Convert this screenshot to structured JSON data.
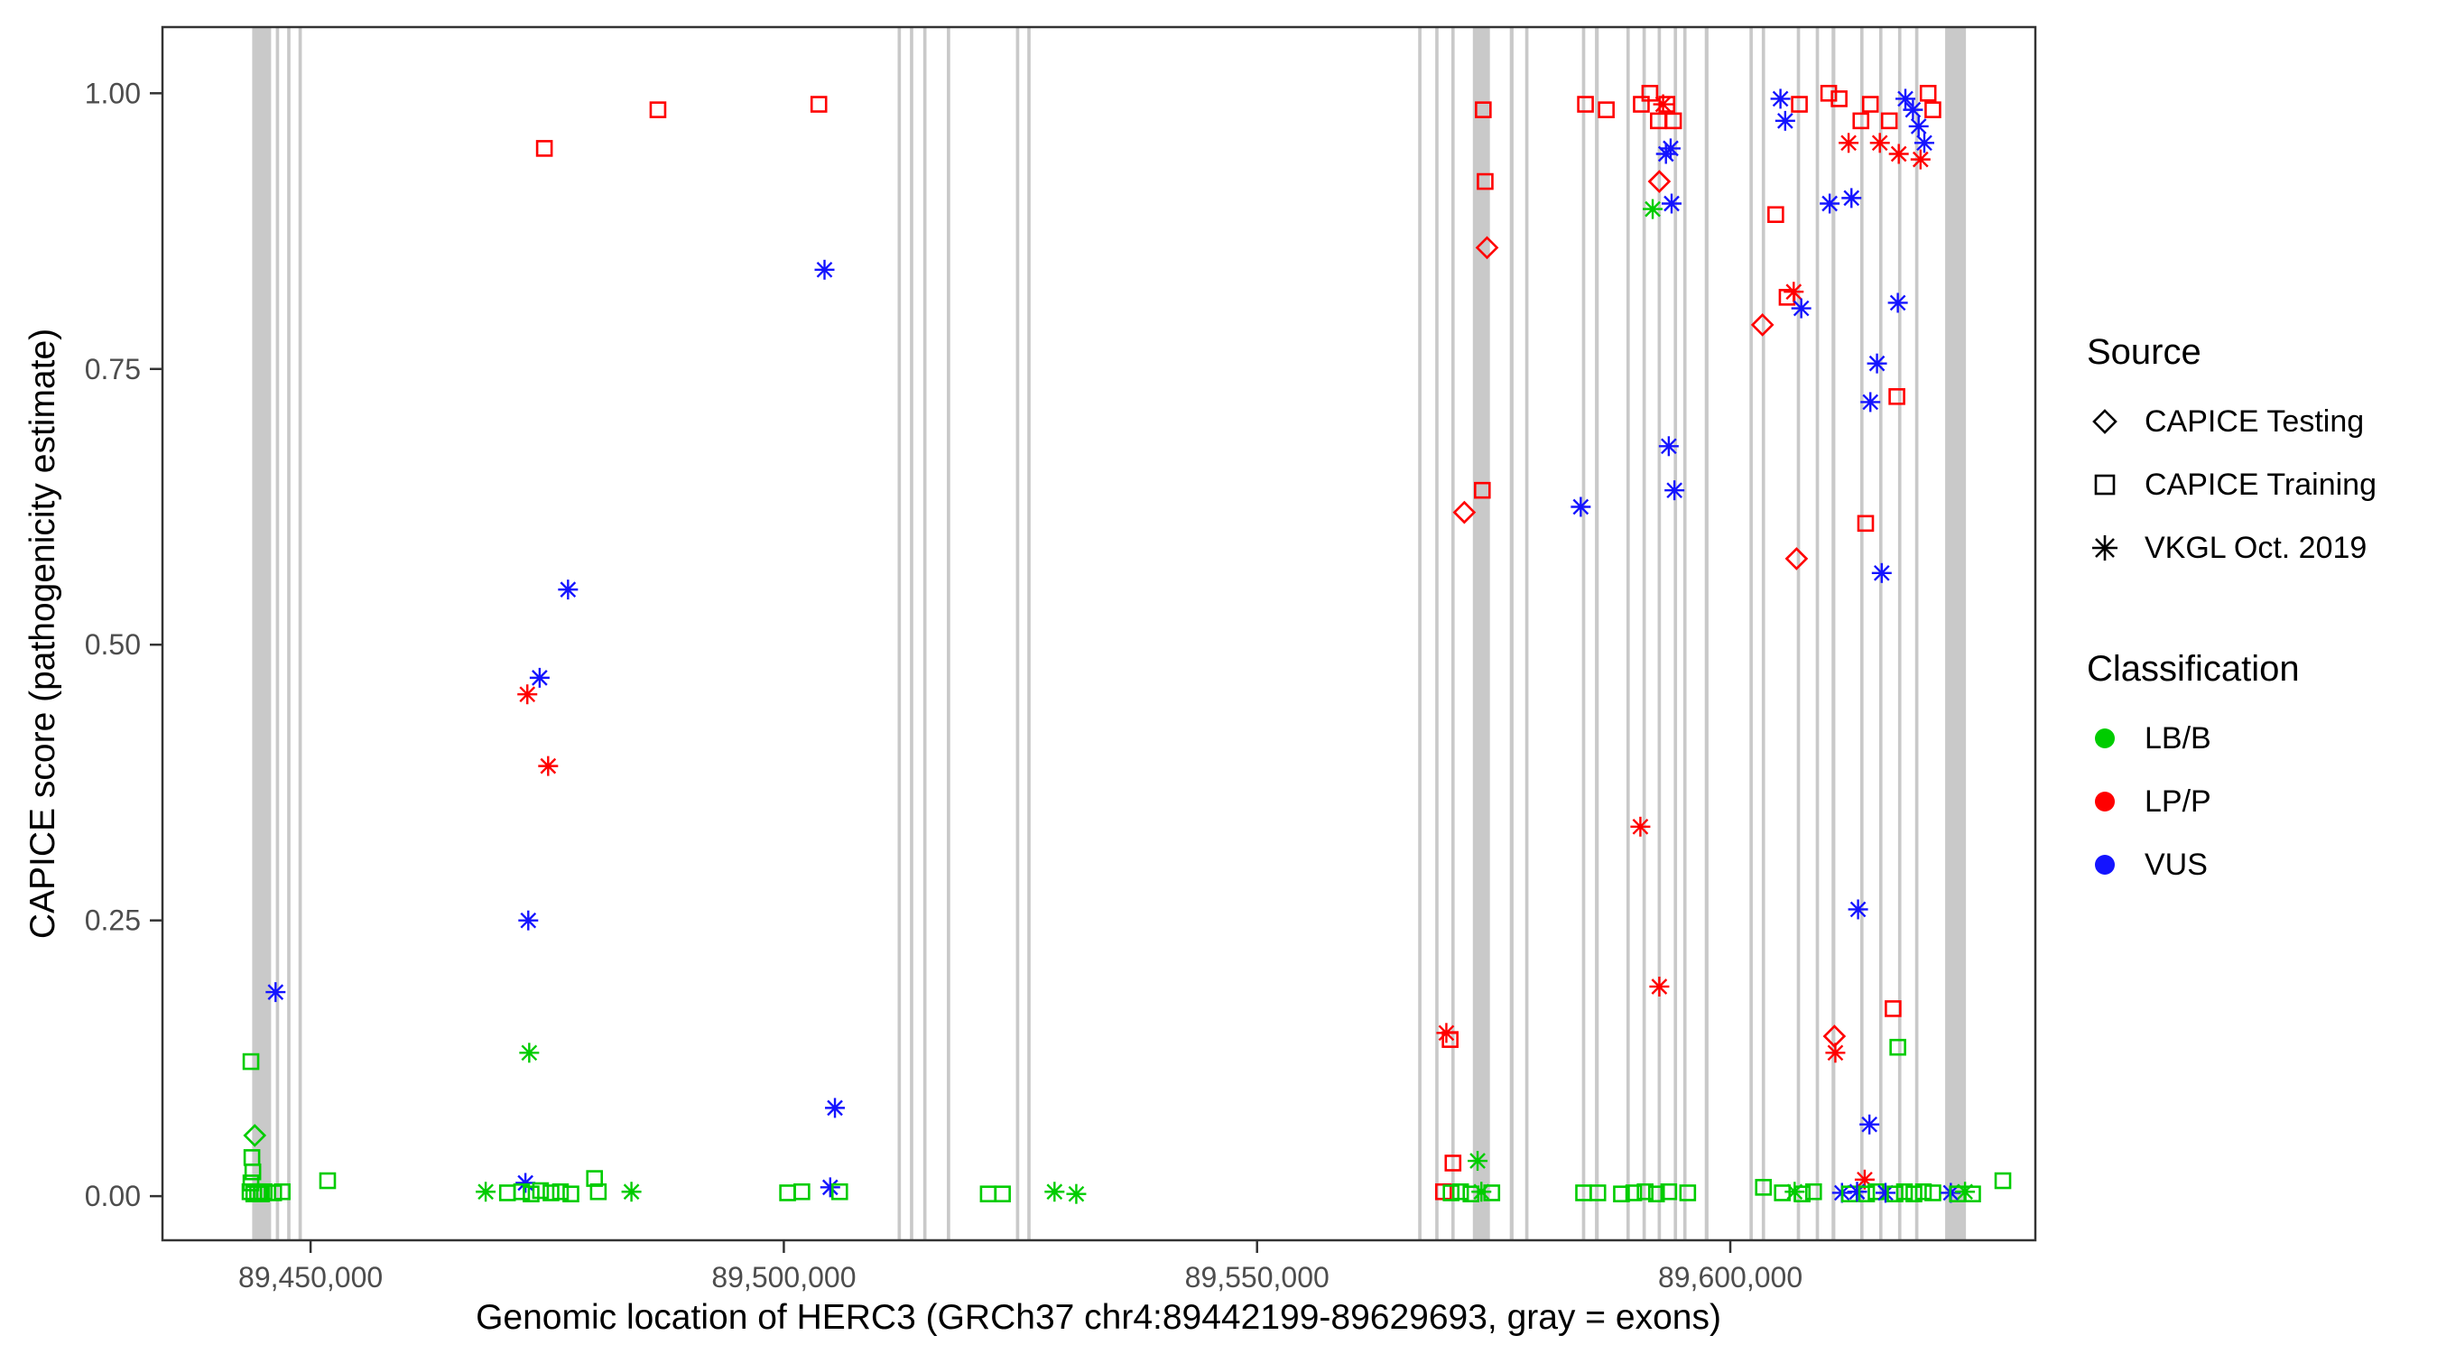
{
  "chart_data": {
    "type": "scatter",
    "title": "",
    "xlabel": "Genomic location of HERC3 (GRCh37 chr4:89442199-89629693, gray = exons)",
    "ylabel": "CAPICE score (pathogenicity estimate)",
    "xlim": [
      89434350,
      89632230
    ],
    "ylim": [
      -0.04,
      1.06
    ],
    "grid": "off",
    "legend_position": "right",
    "x_ticks": [
      {
        "value": 89450000,
        "label": "89,450,000"
      },
      {
        "value": 89500000,
        "label": "89,500,000"
      },
      {
        "value": 89550000,
        "label": "89,550,000"
      },
      {
        "value": 89600000,
        "label": "89,600,000"
      }
    ],
    "y_ticks": [
      {
        "value": 0.0,
        "label": "0.00"
      },
      {
        "value": 0.25,
        "label": "0.25"
      },
      {
        "value": 0.5,
        "label": "0.50"
      },
      {
        "value": 0.75,
        "label": "0.75"
      },
      {
        "value": 1.0,
        "label": "1.00"
      }
    ],
    "sources": [
      "CAPICE Testing",
      "CAPICE Training",
      "VKGL Oct. 2019"
    ],
    "source_shapes": [
      "diamond",
      "square",
      "asterisk"
    ],
    "classes": [
      "LB/B",
      "LP/P",
      "VUS"
    ],
    "class_colors": [
      "#00CC00",
      "#FF0000",
      "#1414FF"
    ],
    "exon_color": "#C9C9C9",
    "axis_color": "#333333",
    "tick_label_color": "#4D4D4D",
    "exons": [
      [
        89444830,
        2000
      ],
      [
        89446500,
        350
      ],
      [
        89447700,
        350
      ],
      [
        89448900,
        350
      ],
      [
        89512200,
        350
      ],
      [
        89513500,
        350
      ],
      [
        89514900,
        350
      ],
      [
        89517400,
        350
      ],
      [
        89524700,
        350
      ],
      [
        89525900,
        350
      ],
      [
        89567200,
        350
      ],
      [
        89569000,
        350
      ],
      [
        89570700,
        350
      ],
      [
        89573700,
        1800
      ],
      [
        89576900,
        400
      ],
      [
        89578500,
        350
      ],
      [
        89584500,
        350
      ],
      [
        89585900,
        400
      ],
      [
        89589200,
        350
      ],
      [
        89590900,
        350
      ],
      [
        89592500,
        350
      ],
      [
        89594200,
        350
      ],
      [
        89595200,
        350
      ],
      [
        89597500,
        400
      ],
      [
        89602200,
        350
      ],
      [
        89603500,
        350
      ],
      [
        89607200,
        350
      ],
      [
        89609200,
        350
      ],
      [
        89610900,
        400
      ],
      [
        89613900,
        350
      ],
      [
        89615900,
        350
      ],
      [
        89617900,
        350
      ],
      [
        89619700,
        350
      ],
      [
        89623800,
        2200
      ]
    ],
    "points": [
      [
        89443700,
        0.122,
        1,
        0
      ],
      [
        89444100,
        0.055,
        0,
        0
      ],
      [
        89443800,
        0.035,
        1,
        0
      ],
      [
        89443900,
        0.022,
        1,
        0
      ],
      [
        89443700,
        0.012,
        1,
        0
      ],
      [
        89443600,
        0.004,
        1,
        0
      ],
      [
        89444000,
        0.002,
        1,
        0
      ],
      [
        89444400,
        0.004,
        1,
        0
      ],
      [
        89444800,
        0.002,
        1,
        0
      ],
      [
        89445100,
        0.004,
        1,
        0
      ],
      [
        89446300,
        0.185,
        2,
        2
      ],
      [
        89446100,
        0.003,
        1,
        0
      ],
      [
        89447000,
        0.004,
        1,
        0
      ],
      [
        89451800,
        0.014,
        1,
        0
      ],
      [
        89474700,
        0.95,
        1,
        1
      ],
      [
        89477200,
        0.55,
        2,
        2
      ],
      [
        89474200,
        0.47,
        2,
        2
      ],
      [
        89472900,
        0.455,
        2,
        1
      ],
      [
        89475100,
        0.39,
        2,
        1
      ],
      [
        89473000,
        0.25,
        2,
        2
      ],
      [
        89473100,
        0.13,
        2,
        0
      ],
      [
        89468500,
        0.004,
        2,
        0
      ],
      [
        89472700,
        0.012,
        2,
        2
      ],
      [
        89470800,
        0.003,
        1,
        0
      ],
      [
        89472300,
        0.004,
        1,
        0
      ],
      [
        89473300,
        0.002,
        1,
        0
      ],
      [
        89474300,
        0.005,
        1,
        0
      ],
      [
        89475400,
        0.003,
        1,
        0
      ],
      [
        89476400,
        0.004,
        1,
        0
      ],
      [
        89477500,
        0.002,
        1,
        0
      ],
      [
        89480000,
        0.016,
        1,
        0
      ],
      [
        89480400,
        0.004,
        1,
        0
      ],
      [
        89483900,
        0.004,
        2,
        0
      ],
      [
        89486700,
        0.985,
        1,
        1
      ],
      [
        89503700,
        0.99,
        1,
        1
      ],
      [
        89504300,
        0.84,
        2,
        2
      ],
      [
        89505400,
        0.08,
        2,
        2
      ],
      [
        89500400,
        0.003,
        1,
        0
      ],
      [
        89501900,
        0.004,
        1,
        0
      ],
      [
        89504900,
        0.008,
        2,
        2
      ],
      [
        89505900,
        0.004,
        1,
        0
      ],
      [
        89521600,
        0.002,
        1,
        0
      ],
      [
        89523100,
        0.002,
        1,
        0
      ],
      [
        89528600,
        0.004,
        2,
        0
      ],
      [
        89530900,
        0.002,
        2,
        0
      ],
      [
        89573900,
        0.985,
        1,
        1
      ],
      [
        89574100,
        0.92,
        1,
        1
      ],
      [
        89574300,
        0.86,
        0,
        1
      ],
      [
        89573800,
        0.64,
        1,
        1
      ],
      [
        89571900,
        0.62,
        0,
        1
      ],
      [
        89570000,
        0.148,
        2,
        1
      ],
      [
        89570400,
        0.142,
        1,
        1
      ],
      [
        89570700,
        0.03,
        1,
        1
      ],
      [
        89573300,
        0.032,
        2,
        0
      ],
      [
        89569700,
        0.004,
        1,
        1
      ],
      [
        89570500,
        0.003,
        1,
        0
      ],
      [
        89571500,
        0.004,
        1,
        0
      ],
      [
        89572600,
        0.002,
        1,
        0
      ],
      [
        89573700,
        0.004,
        2,
        0
      ],
      [
        89574800,
        0.003,
        1,
        0
      ],
      [
        89584200,
        0.625,
        2,
        2
      ],
      [
        89584700,
        0.99,
        1,
        1
      ],
      [
        89586900,
        0.985,
        1,
        1
      ],
      [
        89584500,
        0.003,
        1,
        0
      ],
      [
        89586000,
        0.003,
        1,
        0
      ],
      [
        89588500,
        0.002,
        1,
        0
      ],
      [
        89590600,
        0.99,
        1,
        1
      ],
      [
        89591500,
        1.0,
        1,
        1
      ],
      [
        89592400,
        0.975,
        1,
        1
      ],
      [
        89593300,
        0.99,
        1,
        1
      ],
      [
        89594000,
        0.975,
        1,
        1
      ],
      [
        89592900,
        0.99,
        2,
        1
      ],
      [
        89592500,
        0.92,
        0,
        1
      ],
      [
        89591800,
        0.895,
        2,
        0
      ],
      [
        89593800,
        0.9,
        2,
        2
      ],
      [
        89593200,
        0.945,
        2,
        2
      ],
      [
        89593700,
        0.95,
        2,
        2
      ],
      [
        89593500,
        0.68,
        2,
        2
      ],
      [
        89594100,
        0.64,
        2,
        2
      ],
      [
        89590500,
        0.335,
        2,
        1
      ],
      [
        89592500,
        0.19,
        2,
        1
      ],
      [
        89589800,
        0.003,
        1,
        0
      ],
      [
        89591000,
        0.004,
        1,
        0
      ],
      [
        89592200,
        0.002,
        1,
        0
      ],
      [
        89593500,
        0.004,
        1,
        0
      ],
      [
        89595500,
        0.003,
        1,
        0
      ],
      [
        89605300,
        0.995,
        2,
        2
      ],
      [
        89605800,
        0.975,
        2,
        2
      ],
      [
        89607300,
        0.99,
        1,
        1
      ],
      [
        89610400,
        1.0,
        1,
        1
      ],
      [
        89611500,
        0.995,
        1,
        1
      ],
      [
        89612500,
        0.955,
        2,
        1
      ],
      [
        89613800,
        0.975,
        1,
        1
      ],
      [
        89614800,
        0.99,
        1,
        1
      ],
      [
        89615800,
        0.955,
        2,
        1
      ],
      [
        89616800,
        0.975,
        1,
        1
      ],
      [
        89617800,
        0.945,
        2,
        1
      ],
      [
        89618500,
        0.995,
        2,
        2
      ],
      [
        89619300,
        0.985,
        2,
        2
      ],
      [
        89619900,
        0.97,
        2,
        2
      ],
      [
        89620500,
        0.955,
        2,
        2
      ],
      [
        89620900,
        1.0,
        1,
        1
      ],
      [
        89621400,
        0.985,
        1,
        1
      ],
      [
        89620100,
        0.94,
        2,
        1
      ],
      [
        89604800,
        0.89,
        1,
        1
      ],
      [
        89606000,
        0.815,
        1,
        1
      ],
      [
        89606700,
        0.82,
        2,
        1
      ],
      [
        89607500,
        0.805,
        2,
        2
      ],
      [
        89603400,
        0.79,
        0,
        1
      ],
      [
        89610500,
        0.9,
        2,
        2
      ],
      [
        89612800,
        0.905,
        2,
        2
      ],
      [
        89617700,
        0.81,
        2,
        2
      ],
      [
        89615500,
        0.755,
        2,
        2
      ],
      [
        89614800,
        0.72,
        2,
        2
      ],
      [
        89617600,
        0.725,
        1,
        1
      ],
      [
        89614300,
        0.61,
        1,
        1
      ],
      [
        89607000,
        0.578,
        0,
        1
      ],
      [
        89616000,
        0.565,
        2,
        2
      ],
      [
        89613500,
        0.26,
        2,
        2
      ],
      [
        89617200,
        0.17,
        1,
        1
      ],
      [
        89611000,
        0.145,
        0,
        1
      ],
      [
        89611100,
        0.13,
        2,
        1
      ],
      [
        89617700,
        0.135,
        1,
        0
      ],
      [
        89614700,
        0.065,
        2,
        2
      ],
      [
        89614200,
        0.015,
        2,
        1
      ],
      [
        89603500,
        0.008,
        1,
        0
      ],
      [
        89605500,
        0.003,
        1,
        0
      ],
      [
        89606800,
        0.004,
        2,
        0
      ],
      [
        89607600,
        0.002,
        1,
        0
      ],
      [
        89608800,
        0.004,
        1,
        0
      ],
      [
        89611800,
        0.003,
        2,
        2
      ],
      [
        89612600,
        0.002,
        1,
        0
      ],
      [
        89613400,
        0.004,
        2,
        2
      ],
      [
        89614400,
        0.002,
        1,
        0
      ],
      [
        89615400,
        0.004,
        1,
        0
      ],
      [
        89616400,
        0.003,
        2,
        2
      ],
      [
        89617400,
        0.002,
        1,
        0
      ],
      [
        89618400,
        0.004,
        1,
        0
      ],
      [
        89619400,
        0.002,
        1,
        0
      ],
      [
        89620400,
        0.004,
        1,
        0
      ],
      [
        89621400,
        0.003,
        1,
        0
      ],
      [
        89623300,
        0.003,
        2,
        2
      ],
      [
        89624000,
        0.002,
        1,
        0
      ],
      [
        89624800,
        0.004,
        2,
        0
      ],
      [
        89625600,
        0.002,
        1,
        0
      ],
      [
        89628800,
        0.014,
        1,
        0
      ]
    ]
  },
  "legend": {
    "source": {
      "title": "Source",
      "items": [
        {
          "label": "CAPICE Testing",
          "shape": "diamond"
        },
        {
          "label": "CAPICE Training",
          "shape": "square"
        },
        {
          "label": "VKGL Oct. 2019",
          "shape": "asterisk"
        }
      ]
    },
    "classification": {
      "title": "Classification",
      "items": [
        {
          "label": "LB/B",
          "color": "#00CC00"
        },
        {
          "label": "LP/P",
          "color": "#FF0000"
        },
        {
          "label": "VUS",
          "color": "#1414FF"
        }
      ]
    }
  }
}
